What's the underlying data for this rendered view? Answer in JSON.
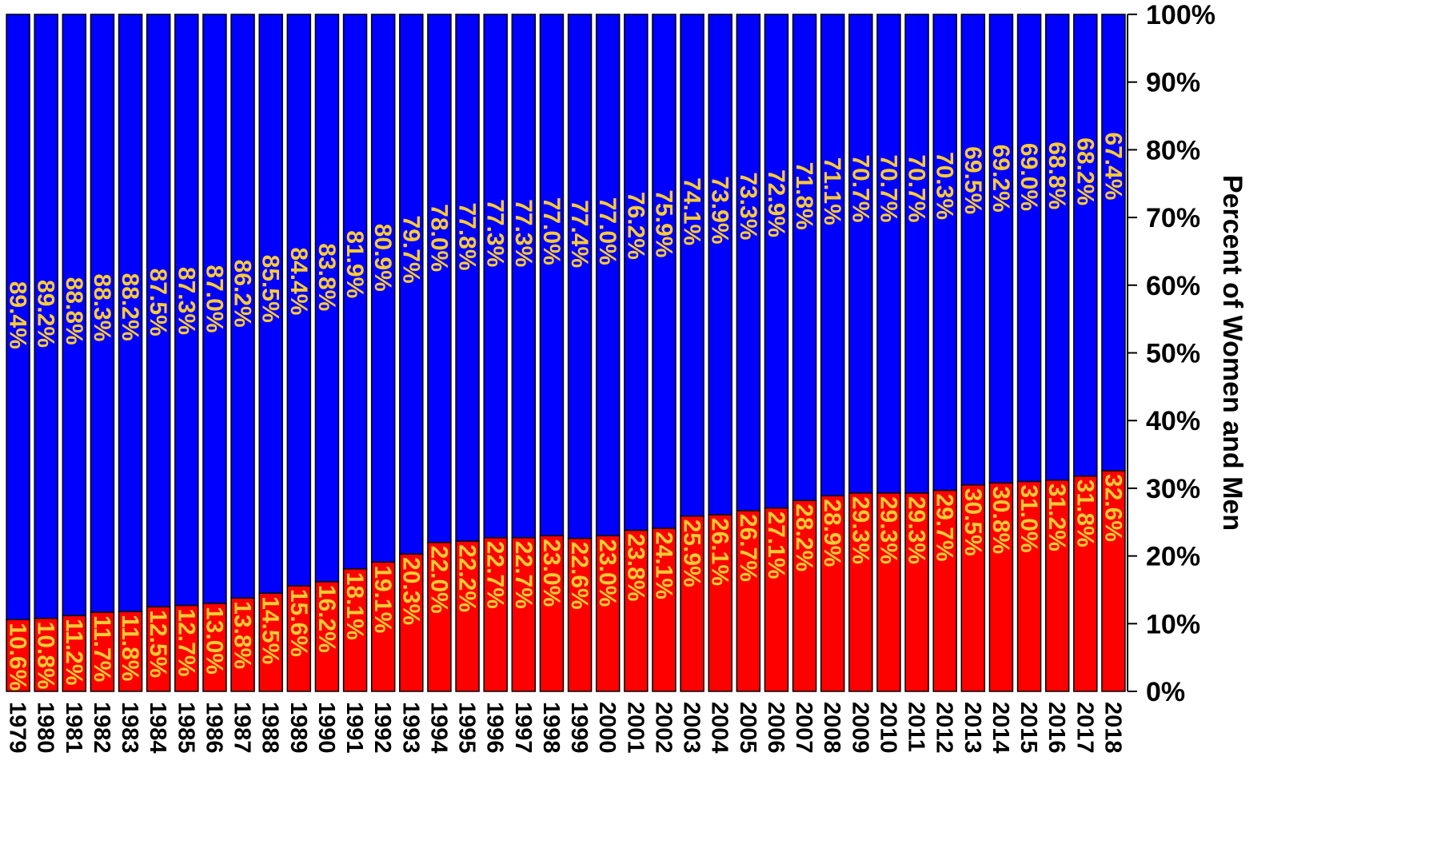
{
  "chart_data": {
    "type": "bar",
    "stacked": true,
    "categories": [
      "1979",
      "1980",
      "1981",
      "1982",
      "1983",
      "1984",
      "1985",
      "1986",
      "1987",
      "1988",
      "1989",
      "1990",
      "1991",
      "1992",
      "1993",
      "1994",
      "1995",
      "1996",
      "1997",
      "1998",
      "1999",
      "2000",
      "2001",
      "2002",
      "2003",
      "2004",
      "2005",
      "2006",
      "2007",
      "2008",
      "2009",
      "2010",
      "2011",
      "2012",
      "2013",
      "2014",
      "2015",
      "2016",
      "2017",
      "2018"
    ],
    "series": [
      {
        "color": "#ff0000",
        "values": [
          10.6,
          10.8,
          11.2,
          11.7,
          11.8,
          12.5,
          12.7,
          13.0,
          13.8,
          14.5,
          15.6,
          16.2,
          18.1,
          19.1,
          20.3,
          22.0,
          22.2,
          22.7,
          22.7,
          23.0,
          22.6,
          23.0,
          23.8,
          24.1,
          25.9,
          26.1,
          26.7,
          27.1,
          28.2,
          28.9,
          29.3,
          29.3,
          29.3,
          29.7,
          30.5,
          30.8,
          31.0,
          31.2,
          31.8,
          32.6
        ],
        "labels": [
          "10.6%",
          "10.8%",
          "11.2%",
          "11.7%",
          "11.8%",
          "12.5%",
          "12.7%",
          "13.0%",
          "13.8%",
          "14.5%",
          "15.6%",
          "16.2%",
          "18.1%",
          "19.1%",
          "20.3%",
          "22.0%",
          "22.2%",
          "22.7%",
          "22.7%",
          "23.0%",
          "22.6%",
          "23.0%",
          "23.8%",
          "24.1%",
          "25.9%",
          "26.1%",
          "26.7%",
          "27.1%",
          "28.2%",
          "28.9%",
          "29.3%",
          "29.3%",
          "29.3%",
          "29.7%",
          "30.5%",
          "30.8%",
          "31.0%",
          "31.2%",
          "31.8%",
          "32.6%"
        ]
      },
      {
        "color": "#0000ff",
        "values": [
          89.4,
          89.2,
          88.8,
          88.3,
          88.2,
          87.5,
          87.3,
          87.0,
          86.2,
          85.5,
          84.4,
          83.8,
          81.9,
          80.9,
          79.7,
          78.0,
          77.8,
          77.3,
          77.3,
          77.0,
          77.4,
          77.0,
          76.2,
          75.9,
          74.1,
          73.9,
          73.3,
          72.9,
          71.8,
          71.1,
          70.7,
          70.7,
          70.7,
          70.3,
          69.5,
          69.2,
          69.0,
          68.8,
          68.2,
          67.4
        ],
        "labels": [
          "89.4%",
          "89.2%",
          "88.8%",
          "88.3%",
          "88.2%",
          "87.5%",
          "87.3%",
          "87.0%",
          "86.2%",
          "85.5%",
          "84.4%",
          "83.8%",
          "81.9%",
          "80.9%",
          "79.7%",
          "78.0%",
          "77.8%",
          "77.3%",
          "77.3%",
          "77.0%",
          "77.4%",
          "77.0%",
          "76.2%",
          "75.9%",
          "74.1%",
          "73.9%",
          "73.3%",
          "72.9%",
          "71.8%",
          "71.1%",
          "70.7%",
          "70.7%",
          "70.7%",
          "70.3%",
          "69.5%",
          "69.2%",
          "69.0%",
          "68.8%",
          "68.2%",
          "67.4%"
        ]
      }
    ],
    "ylabel": "Percent of Women and Men",
    "ylim": [
      0,
      100
    ],
    "yticks": [
      "0%",
      "10%",
      "20%",
      "30%",
      "40%",
      "50%",
      "60%",
      "70%",
      "80%",
      "90%",
      "100%"
    ],
    "label_color": "#ffcc33",
    "legend": "none",
    "grid": false
  }
}
